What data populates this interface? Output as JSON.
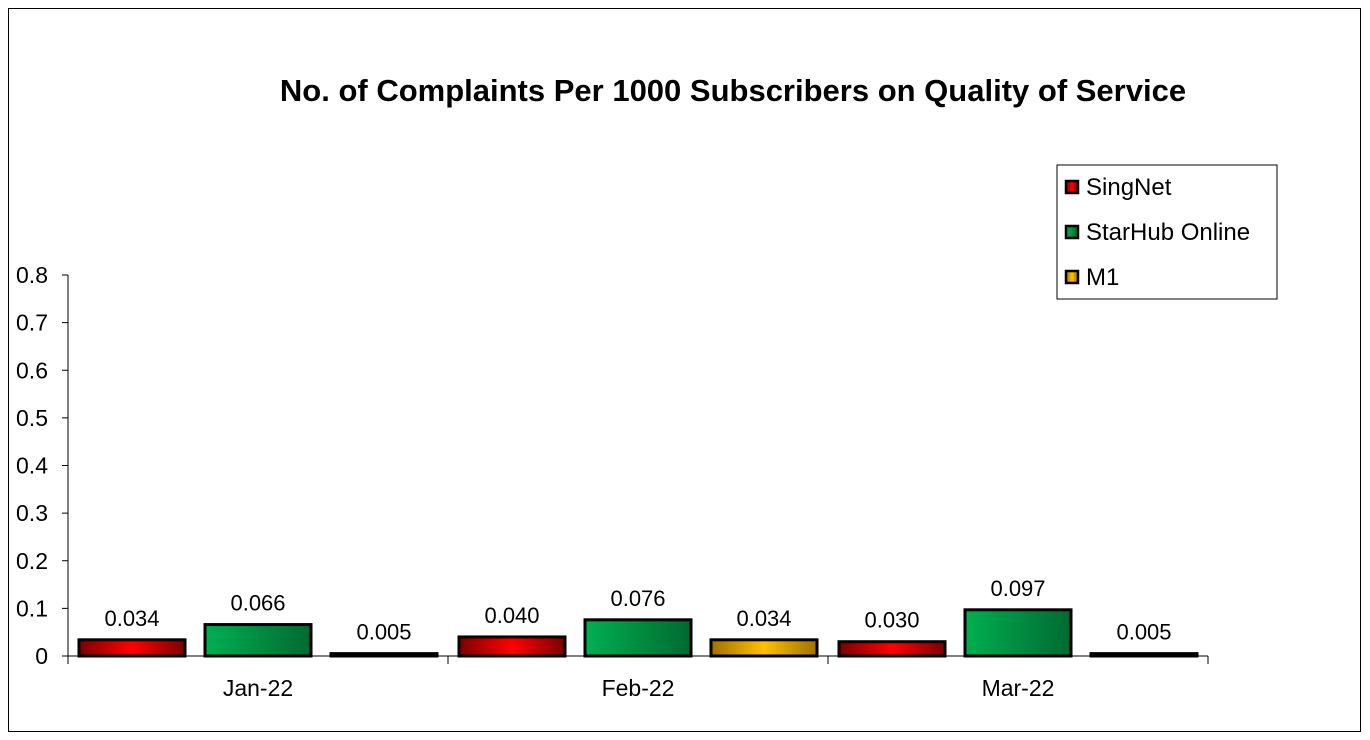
{
  "chart_data": {
    "type": "bar",
    "title": "No. of Complaints Per 1000 Subscribers on Quality of Service",
    "xlabel": "",
    "ylabel": "",
    "categories": [
      "Jan-22",
      "Feb-22",
      "Mar-22"
    ],
    "series": [
      {
        "name": "SingNet",
        "values": [
          0.034,
          0.04,
          0.03
        ],
        "labels": [
          "0.034",
          "0.040",
          "0.030"
        ],
        "color": "#ff0000",
        "color_dark": "#7a0000"
      },
      {
        "name": "StarHub Online",
        "values": [
          0.066,
          0.076,
          0.097
        ],
        "labels": [
          "0.066",
          "0.076",
          "0.097"
        ],
        "color": "#00b050",
        "color_dark": "#006a30"
      },
      {
        "name": "M1",
        "values": [
          0.005,
          0.034,
          0.005
        ],
        "labels": [
          "0.005",
          "0.034",
          "0.005"
        ],
        "color": "#ffc000",
        "color_dark": "#a07000"
      }
    ],
    "ylim": [
      0,
      0.8
    ],
    "yticks": [
      "0",
      "0.1",
      "0.2",
      "0.3",
      "0.4",
      "0.5",
      "0.6",
      "0.7",
      "0.8"
    ],
    "grid": false,
    "legend_position": "top-right"
  }
}
